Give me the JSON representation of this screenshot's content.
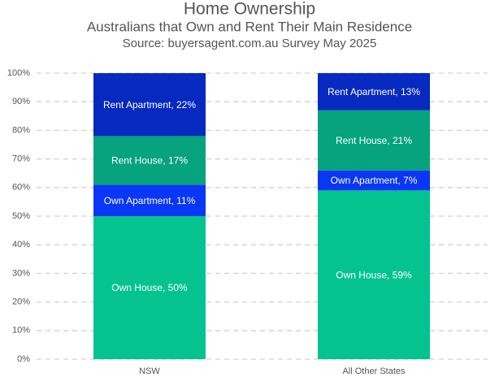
{
  "chart_data": {
    "type": "stacked_bar",
    "title": "Home Ownership",
    "subtitle": "Australians that Own and Rent Their Main Residence",
    "source": "Source: buyersagent.com.au Survey May 2025",
    "categories": [
      "NSW",
      "All Other States"
    ],
    "series": [
      {
        "name": "Own House",
        "color": "#05c38f",
        "values": [
          50,
          59
        ],
        "value_labels": [
          "Own House, 50%",
          "Own House, 59%"
        ]
      },
      {
        "name": "Own Apartment",
        "color": "#0a36f5",
        "values": [
          11,
          7
        ],
        "value_labels": [
          "Own Apartment, 11%",
          "Own Apartment, 7%"
        ]
      },
      {
        "name": "Rent House",
        "color": "#07a27e",
        "values": [
          17,
          21
        ],
        "value_labels": [
          "Rent House, 17%",
          "Rent House, 21%"
        ]
      },
      {
        "name": "Rent Apartment",
        "color": "#0629bf",
        "values": [
          22,
          13
        ],
        "value_labels": [
          "Rent Apartment, 22%",
          "Rent Apartment, 13%"
        ]
      }
    ],
    "ylim": [
      0,
      100
    ],
    "yticks": [
      {
        "value": 0,
        "label": "0%"
      },
      {
        "value": 10,
        "label": "10%"
      },
      {
        "value": 20,
        "label": "20%"
      },
      {
        "value": 30,
        "label": "30%"
      },
      {
        "value": 40,
        "label": "40%"
      },
      {
        "value": 50,
        "label": "50%"
      },
      {
        "value": 60,
        "label": "60%"
      },
      {
        "value": 70,
        "label": "70%"
      },
      {
        "value": 80,
        "label": "80%"
      },
      {
        "value": 90,
        "label": "90%"
      },
      {
        "value": 100,
        "label": "100%"
      }
    ],
    "grid": true
  }
}
